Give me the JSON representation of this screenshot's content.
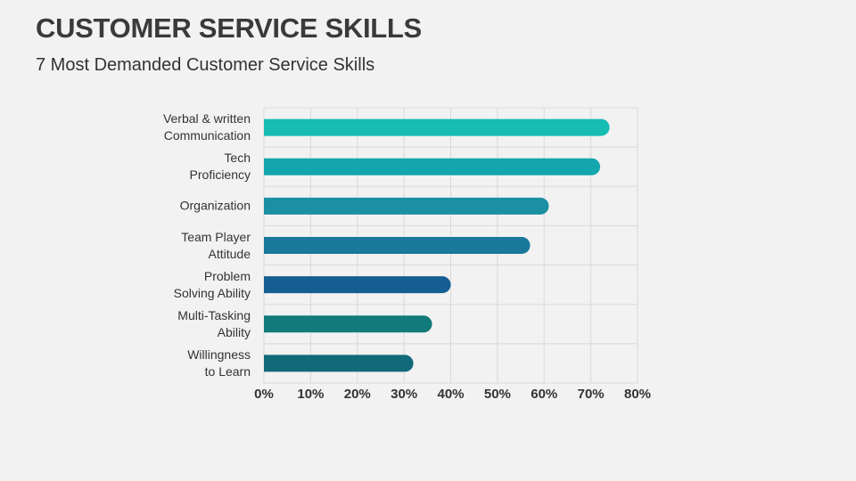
{
  "chart_data": {
    "type": "bar",
    "orientation": "horizontal",
    "title": "CUSTOMER SERVICE SKILLS",
    "subtitle": "7 Most Demanded Customer Service Skills",
    "categories": [
      "Verbal & written\nCommunication",
      "Tech\nProficiency",
      "Organization",
      "Team Player\nAttitude",
      "Problem\nSolving Ability",
      "Multi-Tasking\nAbility",
      "Willingness\nto Learn"
    ],
    "values": [
      74,
      72,
      61,
      57,
      40,
      36,
      32
    ],
    "colors": [
      "#17bcb3",
      "#14a6ad",
      "#1a90a2",
      "#19789b",
      "#155e93",
      "#127a7a",
      "#116a7a"
    ],
    "xlim": [
      0,
      80
    ],
    "xticks": [
      {
        "value": 0,
        "label": "0%"
      },
      {
        "value": 10,
        "label": "10%"
      },
      {
        "value": 20,
        "label": "20%"
      },
      {
        "value": 30,
        "label": "30%"
      },
      {
        "value": 40,
        "label": "40%"
      },
      {
        "value": 50,
        "label": "50%"
      },
      {
        "value": 60,
        "label": "60%"
      },
      {
        "value": 70,
        "label": "70%"
      },
      {
        "value": 80,
        "label": "80%"
      }
    ],
    "grid": true
  }
}
